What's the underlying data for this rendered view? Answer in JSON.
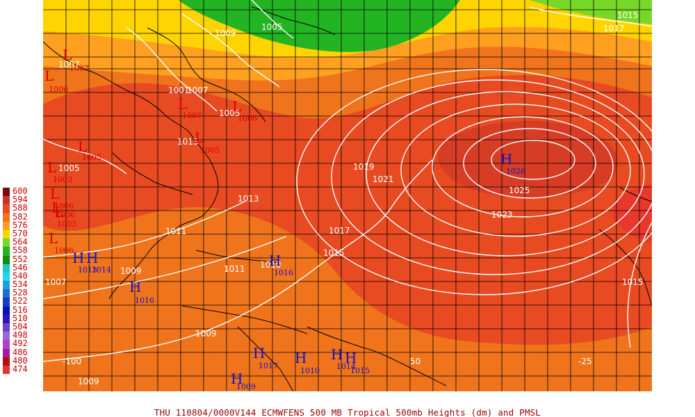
{
  "footer_text": "THU 110804/0000V144  ECMWFENS  500 MB Tropical 500mb Heights (dm) and PMSL",
  "legend": [
    {
      "label": "600",
      "color": "#7a0a0a"
    },
    {
      "label": "594",
      "color": "#c83228"
    },
    {
      "label": "588",
      "color": "#e84a22"
    },
    {
      "label": "582",
      "color": "#f0741c"
    },
    {
      "label": "576",
      "color": "#ffa020"
    },
    {
      "label": "570",
      "color": "#ffd400"
    },
    {
      "label": "564",
      "color": "#78d828"
    },
    {
      "label": "558",
      "color": "#22b422"
    },
    {
      "label": "552",
      "color": "#108c10"
    },
    {
      "label": "546",
      "color": "#1ec8c8"
    },
    {
      "label": "540",
      "color": "#20d8f0"
    },
    {
      "label": "534",
      "color": "#1ca0e0"
    },
    {
      "label": "528",
      "color": "#1a6ed0"
    },
    {
      "label": "522",
      "color": "#1040c0"
    },
    {
      "label": "516",
      "color": "#0a10b8"
    },
    {
      "label": "510",
      "color": "#3010c8"
    },
    {
      "label": "504",
      "color": "#7040c8"
    },
    {
      "label": "498",
      "color": "#9868d8"
    },
    {
      "label": "492",
      "color": "#b040c8"
    },
    {
      "label": "486",
      "color": "#a01ca0"
    },
    {
      "label": "480",
      "color": "#b01010"
    },
    {
      "label": "474",
      "color": "#e83030"
    }
  ],
  "longitude_labels": [
    "-100",
    "50",
    "-25"
  ],
  "isobar_labels": [
    "1005",
    "1009",
    "1015",
    "1017",
    "1007",
    "1007",
    "1001",
    "1005",
    "1005",
    "1013",
    "1011",
    "1019",
    "1021",
    "1025",
    "1023",
    "1013",
    "1011",
    "1017",
    "1015",
    "1010",
    "1009",
    "1007",
    "1009",
    "1009",
    "1015"
  ],
  "low_centers": [
    {
      "symbol": "L",
      "value": "1007"
    },
    {
      "symbol": "L",
      "value": "1006"
    },
    {
      "symbol": "L",
      "value": "1007"
    },
    {
      "symbol": "L",
      "value": "1006"
    },
    {
      "symbol": "L",
      "value": "1005"
    },
    {
      "symbol": "L",
      "value": "1005"
    },
    {
      "symbol": "L",
      "value": "1003"
    },
    {
      "symbol": "L",
      "value": "1006"
    },
    {
      "symbol": "L",
      "value": "1006"
    },
    {
      "symbol": "L",
      "value": "1003"
    },
    {
      "symbol": "L",
      "value": "1006"
    }
  ],
  "high_centers": [
    {
      "symbol": "H",
      "value": "1026"
    },
    {
      "symbol": "H",
      "value": "1016"
    },
    {
      "symbol": "H",
      "value": "1013"
    },
    {
      "symbol": "H",
      "value": "1014"
    },
    {
      "symbol": "H",
      "value": "1016"
    },
    {
      "symbol": "H",
      "value": "1017"
    },
    {
      "symbol": "H",
      "value": "1010"
    },
    {
      "symbol": "H",
      "value": "1014"
    },
    {
      "symbol": "H",
      "value": "1015"
    },
    {
      "symbol": "H",
      "value": "1009"
    }
  ]
}
